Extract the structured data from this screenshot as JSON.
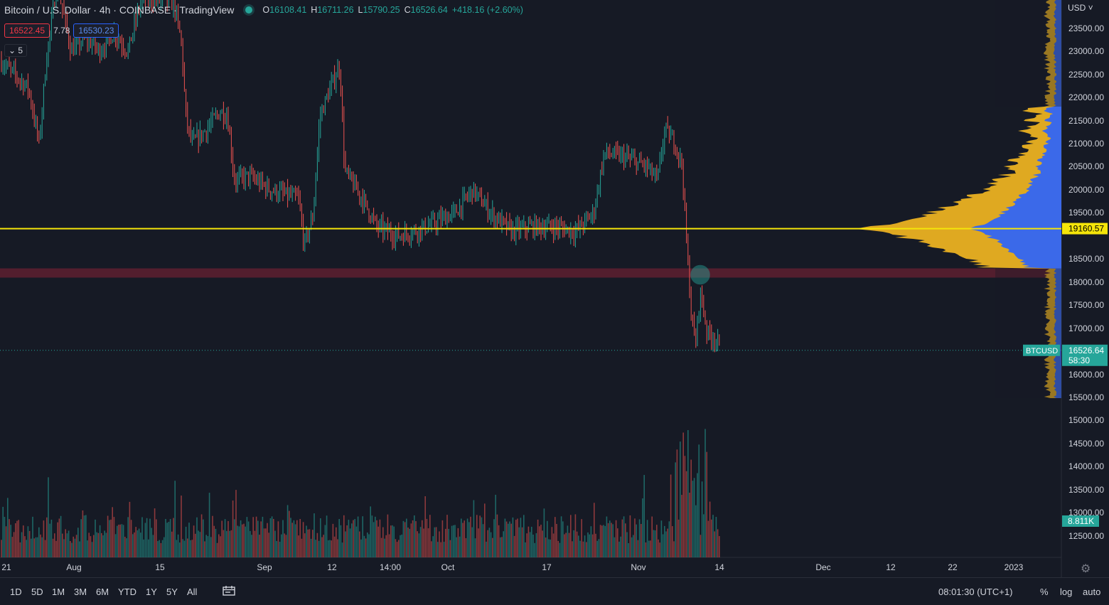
{
  "header": {
    "title": "Bitcoin / U.S. Dollar · 4h · COINBASE · TradingView",
    "ohlc": [
      {
        "k": "O",
        "v": "16108.41"
      },
      {
        "k": "H",
        "v": "16711.26"
      },
      {
        "k": "L",
        "v": "15790.25"
      },
      {
        "k": "C",
        "v": "16526.64"
      },
      {
        "k": "",
        "v": "+418.16 (+2.60%)"
      }
    ],
    "bid": "16522.45",
    "spread": "7.78",
    "ask": "16530.23",
    "indicator_count": "5"
  },
  "price_axis": {
    "currency": "USD",
    "labels": [
      "23500.00",
      "23000.00",
      "22500.00",
      "22000.00",
      "21500.00",
      "21000.00",
      "20500.00",
      "20000.00",
      "19500.00",
      "18500.00",
      "18000.00",
      "17500.00",
      "17000.00",
      "16000.00",
      "15500.00",
      "15000.00",
      "14500.00",
      "14000.00",
      "13500.00",
      "13000.00",
      "12500.00"
    ],
    "poc_label": "19160.57",
    "last_price_label": "16526.64",
    "countdown": "58:30",
    "symbol_tag": "BTCUSD",
    "volume_label": "8.811K"
  },
  "time_axis": {
    "labels": [
      "21",
      "Aug",
      "15",
      "Sep",
      "12",
      "14:00",
      "Oct",
      "17",
      "Nov",
      "14",
      "Dec",
      "12",
      "22",
      "2023"
    ]
  },
  "bottom": {
    "timeframes": [
      "1D",
      "5D",
      "1M",
      "3M",
      "6M",
      "YTD",
      "1Y",
      "5Y",
      "All"
    ],
    "time": "08:01:30 (UTC+1)",
    "options": [
      "%",
      "log",
      "auto"
    ]
  },
  "colors": {
    "bg": "#161a25",
    "up": "#26a69a",
    "down": "#ef5350",
    "poc": "#f5e50a",
    "zone": "#5e2030",
    "vp_up": "#2962ff",
    "vp_value": "#f5b921",
    "vp_out": "#8c6d1f"
  },
  "chart_data": {
    "type": "candlestick",
    "symbol": "BTCUSD",
    "interval": "4h",
    "ylim": [
      12000,
      24000
    ],
    "poc_price": 19160.57,
    "support_zone": [
      18100,
      18300
    ],
    "highlight_point": {
      "price": 18100
    },
    "last_price": 16526.64,
    "price_path": [
      {
        "t": 0,
        "p": 22800
      },
      {
        "t": 40,
        "p": 22200
      },
      {
        "t": 55,
        "p": 21000
      },
      {
        "t": 65,
        "p": 22800
      },
      {
        "t": 80,
        "p": 24500
      },
      {
        "t": 100,
        "p": 23000
      },
      {
        "t": 120,
        "p": 23300
      },
      {
        "t": 140,
        "p": 23000
      },
      {
        "t": 160,
        "p": 23400
      },
      {
        "t": 180,
        "p": 23000
      },
      {
        "t": 200,
        "p": 24200
      },
      {
        "t": 245,
        "p": 24000
      },
      {
        "t": 255,
        "p": 23200
      },
      {
        "t": 262,
        "p": 21500
      },
      {
        "t": 270,
        "p": 21000
      },
      {
        "t": 290,
        "p": 21300
      },
      {
        "t": 310,
        "p": 21700
      },
      {
        "t": 320,
        "p": 21600
      },
      {
        "t": 330,
        "p": 20200
      },
      {
        "t": 350,
        "p": 20300
      },
      {
        "t": 380,
        "p": 20000
      },
      {
        "t": 400,
        "p": 19900
      },
      {
        "t": 420,
        "p": 19800
      },
      {
        "t": 428,
        "p": 18800
      },
      {
        "t": 440,
        "p": 19400
      },
      {
        "t": 450,
        "p": 21600
      },
      {
        "t": 470,
        "p": 22400
      },
      {
        "t": 478,
        "p": 22700
      },
      {
        "t": 485,
        "p": 20400
      },
      {
        "t": 510,
        "p": 19800
      },
      {
        "t": 530,
        "p": 19200
      },
      {
        "t": 560,
        "p": 19000
      },
      {
        "t": 600,
        "p": 19200
      },
      {
        "t": 640,
        "p": 19500
      },
      {
        "t": 665,
        "p": 20000
      },
      {
        "t": 690,
        "p": 19500
      },
      {
        "t": 720,
        "p": 19100
      },
      {
        "t": 745,
        "p": 19200
      },
      {
        "t": 780,
        "p": 19200
      },
      {
        "t": 810,
        "p": 19100
      },
      {
        "t": 835,
        "p": 19500
      },
      {
        "t": 850,
        "p": 20800
      },
      {
        "t": 880,
        "p": 20700
      },
      {
        "t": 910,
        "p": 20500
      },
      {
        "t": 925,
        "p": 20200
      },
      {
        "t": 935,
        "p": 21300
      },
      {
        "t": 950,
        "p": 21000
      },
      {
        "t": 960,
        "p": 20500
      },
      {
        "t": 965,
        "p": 19000
      },
      {
        "t": 972,
        "p": 17400
      },
      {
        "t": 978,
        "p": 16600
      },
      {
        "t": 985,
        "p": 17800
      },
      {
        "t": 995,
        "p": 16900
      },
      {
        "t": 1005,
        "p": 16800
      },
      {
        "t": 1014,
        "p": 16526.64
      }
    ],
    "volume_profile_peak_price": 19160.57
  }
}
